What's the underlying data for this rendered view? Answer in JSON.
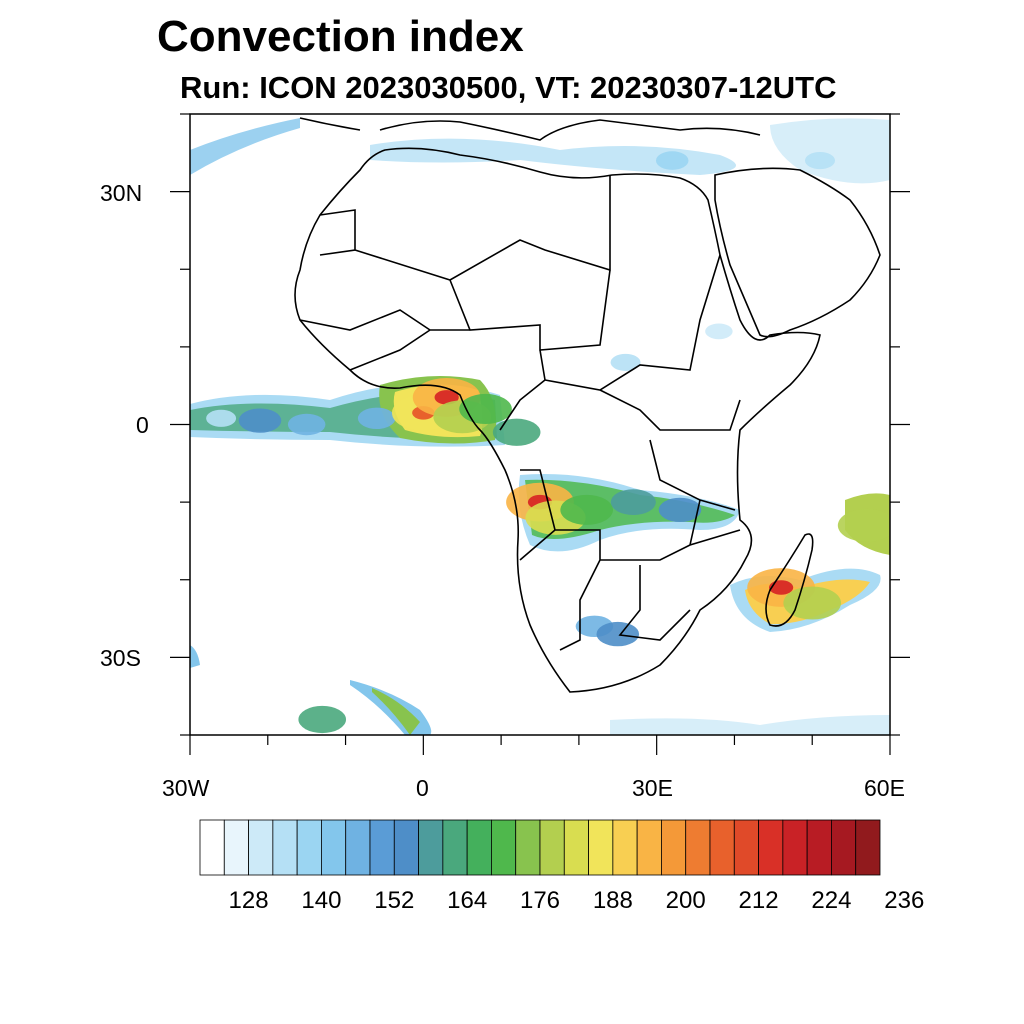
{
  "title": "Convection index",
  "subtitle": "Run: ICON 2023030500,  VT: 20230307-12UTC",
  "map": {
    "lon_range": [
      -30,
      60
    ],
    "lat_range": [
      -40,
      40
    ],
    "x_ticks": [
      "30W",
      "0",
      "30E",
      "60E"
    ],
    "y_ticks": [
      "30N",
      "0",
      "30S"
    ],
    "land_color": "#ffffff",
    "border_color": "#000000"
  },
  "colorbar": {
    "colors": [
      "#ffffff",
      "#e8f5fc",
      "#cdeaf8",
      "#b5e0f5",
      "#9bd5f2",
      "#83c6ec",
      "#6fb2e2",
      "#5a9cd6",
      "#4e8ec8",
      "#4d9c9c",
      "#4aa87d",
      "#44b05c",
      "#4fb84c",
      "#88c34e",
      "#b3cf4f",
      "#d9dd50",
      "#f1e45a",
      "#f8cf52",
      "#f9b445",
      "#f49938",
      "#ee7c31",
      "#e8612c",
      "#e04a29",
      "#d93027",
      "#c92226",
      "#b81c24",
      "#a61921",
      "#911a1d"
    ],
    "labels": [
      "128",
      "140",
      "152",
      "164",
      "176",
      "188",
      "200",
      "212",
      "224",
      "236"
    ],
    "label_start_box": 2,
    "label_step": 3
  },
  "convection_cells": [
    {
      "lon": -26,
      "lat": 0.8,
      "level": 3
    },
    {
      "lon": -21,
      "lat": 0.5,
      "level": 8
    },
    {
      "lon": -15,
      "lat": 0,
      "level": 6
    },
    {
      "lon": -6,
      "lat": 0.8,
      "level": 6
    },
    {
      "lon": 0,
      "lat": 1.5,
      "level": 16
    },
    {
      "lon": 3,
      "lat": 3.5,
      "level": 18
    },
    {
      "lon": 5,
      "lat": 1,
      "level": 14
    },
    {
      "lon": 8,
      "lat": 2,
      "level": 12
    },
    {
      "lon": 12,
      "lat": -1,
      "level": 10
    },
    {
      "lon": 15,
      "lat": -10,
      "level": 18
    },
    {
      "lon": 17,
      "lat": -12,
      "level": 15
    },
    {
      "lon": 21,
      "lat": -11,
      "level": 12
    },
    {
      "lon": 27,
      "lat": -10,
      "level": 9
    },
    {
      "lon": 33,
      "lat": -11,
      "level": 8
    },
    {
      "lon": 22,
      "lat": -26,
      "level": 6
    },
    {
      "lon": 25,
      "lat": -27,
      "level": 8
    },
    {
      "lon": 46,
      "lat": -21,
      "level": 18
    },
    {
      "lon": 50,
      "lat": -23,
      "level": 14
    },
    {
      "lon": 57,
      "lat": -13,
      "level": 14
    },
    {
      "lon": 26,
      "lat": 8,
      "level": 3
    },
    {
      "lon": 38,
      "lat": 12,
      "level": 2
    },
    {
      "lon": 32,
      "lat": 34,
      "level": 4
    },
    {
      "lon": 51,
      "lat": 34,
      "level": 3
    },
    {
      "lon": -13,
      "lat": -38,
      "level": 10
    }
  ]
}
